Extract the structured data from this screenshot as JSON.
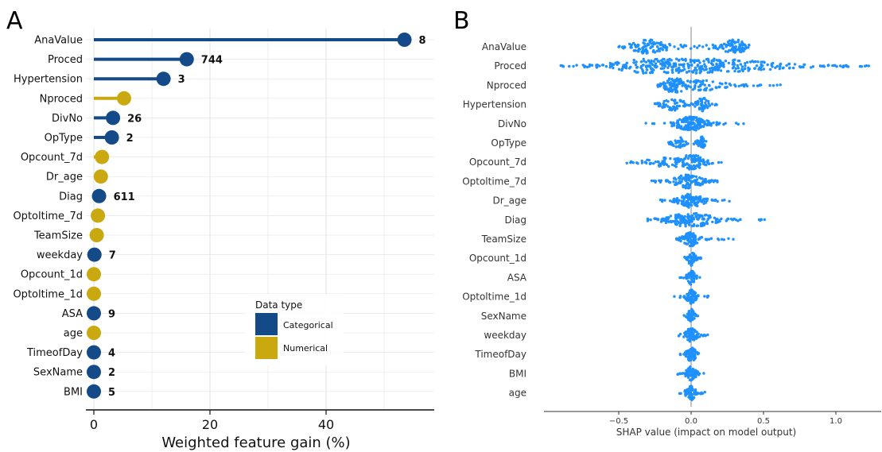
{
  "panels": {
    "a_letter": "A",
    "b_letter": "B"
  },
  "colors": {
    "categorical": "#144a87",
    "numerical": "#c9a90f",
    "shap_points": "#1e90ff",
    "grid": "#e6e6e6"
  },
  "chart_data": [
    {
      "type": "lollipop",
      "panel": "A",
      "title": "",
      "xlabel": "Weighted feature gain (%)",
      "ylabel": "",
      "xlim": [
        0,
        58
      ],
      "xticks": [
        0,
        20,
        40
      ],
      "grid": true,
      "legend": {
        "title": "Data type",
        "placement": "lower-center",
        "entries": [
          {
            "label": "Categorical",
            "type": "Categorical"
          },
          {
            "label": "Numerical",
            "type": "Numerical"
          }
        ]
      },
      "points": [
        {
          "feature": "AnaValue",
          "value": 53.5,
          "type": "Categorical",
          "label": "8"
        },
        {
          "feature": "Proced",
          "value": 16,
          "type": "Categorical",
          "label": "744"
        },
        {
          "feature": "Hypertension",
          "value": 12,
          "type": "Categorical",
          "label": "3"
        },
        {
          "feature": "Nproced",
          "value": 5.2,
          "type": "Numerical",
          "label": ""
        },
        {
          "feature": "DivNo",
          "value": 3.3,
          "type": "Categorical",
          "label": "26"
        },
        {
          "feature": "OpType",
          "value": 3.1,
          "type": "Categorical",
          "label": "2"
        },
        {
          "feature": "Opcount_7d",
          "value": 1.4,
          "type": "Numerical",
          "label": ""
        },
        {
          "feature": "Dr_age",
          "value": 1.2,
          "type": "Numerical",
          "label": ""
        },
        {
          "feature": "Diag",
          "value": 0.9,
          "type": "Categorical",
          "label": "611"
        },
        {
          "feature": "Optoltime_7d",
          "value": 0.7,
          "type": "Numerical",
          "label": ""
        },
        {
          "feature": "TeamSize",
          "value": 0.5,
          "type": "Numerical",
          "label": ""
        },
        {
          "feature": "weekday",
          "value": 0.1,
          "type": "Categorical",
          "label": "7"
        },
        {
          "feature": "Opcount_1d",
          "value": 0.0,
          "type": "Numerical",
          "label": ""
        },
        {
          "feature": "Optoltime_1d",
          "value": 0.0,
          "type": "Numerical",
          "label": ""
        },
        {
          "feature": "ASA",
          "value": 0.0,
          "type": "Categorical",
          "label": "9"
        },
        {
          "feature": "age",
          "value": 0.0,
          "type": "Numerical",
          "label": ""
        },
        {
          "feature": "TimeofDay",
          "value": 0.0,
          "type": "Categorical",
          "label": "4"
        },
        {
          "feature": "SexName",
          "value": 0.0,
          "type": "Categorical",
          "label": "2"
        },
        {
          "feature": "BMI",
          "value": 0.0,
          "type": "Categorical",
          "label": "5"
        }
      ]
    },
    {
      "type": "scatter",
      "subtype": "shap-beeswarm",
      "panel": "B",
      "title": "",
      "xlabel": "SHAP value (impact on model output)",
      "ylabel": "",
      "xlim": [
        -1.0,
        1.3
      ],
      "xticks": [
        -0.5,
        0.0,
        0.5,
        1.0
      ],
      "xtick_labels": [
        "−0.5",
        "0.0",
        "0.5",
        "1.0"
      ],
      "zero_line": true,
      "features": [
        {
          "feature": "AnaValue",
          "min": -0.58,
          "max": 0.4,
          "clusters": [
            [
              -0.3,
              0.08,
              1.0
            ],
            [
              0.3,
              0.05,
              1.0
            ],
            [
              0.05,
              0.25,
              0.2
            ]
          ]
        },
        {
          "feature": "Proced",
          "min": -0.9,
          "max": 1.25,
          "clusters": [
            [
              -0.1,
              0.25,
              1.0
            ],
            [
              0.1,
              0.35,
              0.9
            ]
          ]
        },
        {
          "feature": "Nproced",
          "min": -0.23,
          "max": 0.62,
          "clusters": [
            [
              -0.12,
              0.05,
              1.0
            ],
            [
              0.08,
              0.12,
              0.7
            ]
          ]
        },
        {
          "feature": "Hypertension",
          "min": -0.25,
          "max": 0.2,
          "clusters": [
            [
              -0.12,
              0.06,
              0.8
            ],
            [
              0.08,
              0.03,
              1.0
            ]
          ]
        },
        {
          "feature": "DivNo",
          "min": -0.33,
          "max": 0.37,
          "clusters": [
            [
              0.0,
              0.08,
              1.0
            ]
          ]
        },
        {
          "feature": "OpType",
          "min": -0.16,
          "max": 0.12,
          "clusters": [
            [
              -0.08,
              0.03,
              0.8
            ],
            [
              0.07,
              0.02,
              0.9
            ]
          ]
        },
        {
          "feature": "Opcount_7d",
          "min": -0.45,
          "max": 0.22,
          "clusters": [
            [
              0.02,
              0.05,
              1.0
            ],
            [
              -0.15,
              0.12,
              0.6
            ]
          ]
        },
        {
          "feature": "Optoltime_7d",
          "min": -0.28,
          "max": 0.22,
          "clusters": [
            [
              -0.02,
              0.07,
              1.0
            ]
          ]
        },
        {
          "feature": "Dr_age",
          "min": -0.22,
          "max": 0.28,
          "clusters": [
            [
              0.0,
              0.06,
              1.0
            ]
          ]
        },
        {
          "feature": "Diag",
          "min": -0.3,
          "max": 0.52,
          "clusters": [
            [
              0.0,
              0.12,
              1.0
            ]
          ]
        },
        {
          "feature": "TeamSize",
          "min": -0.1,
          "max": 0.3,
          "clusters": [
            [
              0.0,
              0.04,
              1.0
            ]
          ]
        },
        {
          "feature": "Opcount_1d",
          "min": -0.06,
          "max": 0.07,
          "clusters": [
            [
              0.0,
              0.02,
              1.0
            ]
          ]
        },
        {
          "feature": "ASA",
          "min": -0.08,
          "max": 0.06,
          "clusters": [
            [
              0.0,
              0.02,
              1.0
            ]
          ]
        },
        {
          "feature": "Optoltime_1d",
          "min": -0.12,
          "max": 0.12,
          "clusters": [
            [
              0.0,
              0.025,
              1.0
            ]
          ]
        },
        {
          "feature": "SexName",
          "min": -0.05,
          "max": 0.05,
          "clusters": [
            [
              0.0,
              0.015,
              1.0
            ]
          ]
        },
        {
          "feature": "weekday",
          "min": -0.12,
          "max": 0.12,
          "clusters": [
            [
              0.0,
              0.03,
              1.0
            ]
          ]
        },
        {
          "feature": "TimeofDay",
          "min": -0.12,
          "max": 0.08,
          "clusters": [
            [
              0.0,
              0.025,
              1.0
            ]
          ]
        },
        {
          "feature": "BMI",
          "min": -0.1,
          "max": 0.1,
          "clusters": [
            [
              0.0,
              0.025,
              1.0
            ]
          ]
        },
        {
          "feature": "age",
          "min": -0.1,
          "max": 0.1,
          "clusters": [
            [
              0.0,
              0.025,
              1.0
            ]
          ]
        }
      ]
    }
  ]
}
